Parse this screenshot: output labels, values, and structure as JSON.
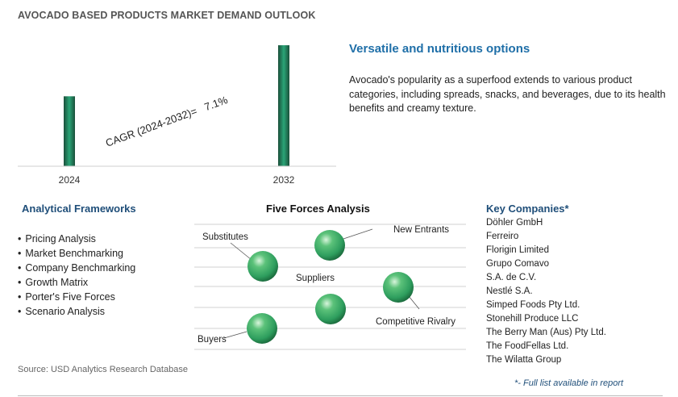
{
  "page": {
    "title": "AVOCADO BASED PRODUCTS MARKET DEMAND OUTLOOK",
    "source": "Source: USD Analytics Research Database"
  },
  "chart_data": {
    "type": "bar",
    "categories": [
      "2024",
      "2032"
    ],
    "values": [
      1.0,
      1.73
    ],
    "title": "",
    "xlabel": "",
    "ylabel": "",
    "ylim": [
      0,
      1.8
    ],
    "annotation": "CAGR (2024-2032)=   7.1%",
    "grid": false,
    "bar_gradient": [
      "#1a4f3a",
      "#2aa577",
      "#1a4f3a"
    ]
  },
  "highlight": {
    "headline": "Versatile and nutritious options",
    "description": "Avocado's popularity as a superfood extends to various product categories, including spreads, snacks, and beverages, due to its health benefits and creamy texture."
  },
  "analytical_frameworks": {
    "title": "Analytical Frameworks",
    "items": [
      "Pricing Analysis",
      "Market Benchmarking",
      "Company Benchmarking",
      "Growth Matrix",
      "Porter's Five Forces",
      "Scenario Analysis"
    ]
  },
  "five_forces": {
    "title": "Five Forces Analysis",
    "labels": {
      "substitutes": "Substitutes",
      "new_entrants": "New Entrants",
      "suppliers": "Suppliers",
      "competitive_rivalry": "Competitive Rivalry",
      "buyers": "Buyers"
    },
    "sphere_color": "#2e9e5e"
  },
  "key_companies": {
    "title": "Key Companies*",
    "items": [
      "Döhler GmbH",
      "Ferreiro",
      "Florigin Limited",
      "Grupo Comavo",
      "S.A. de C.V.",
      "Nestlé S.A.",
      "Simped Foods Pty Ltd.",
      "Stonehill Produce LLC",
      "The Berry Man (Aus) Pty Ltd.",
      "The FoodFellas Ltd.",
      "The Wilatta Group"
    ],
    "footnote": "*- Full list available in report"
  }
}
